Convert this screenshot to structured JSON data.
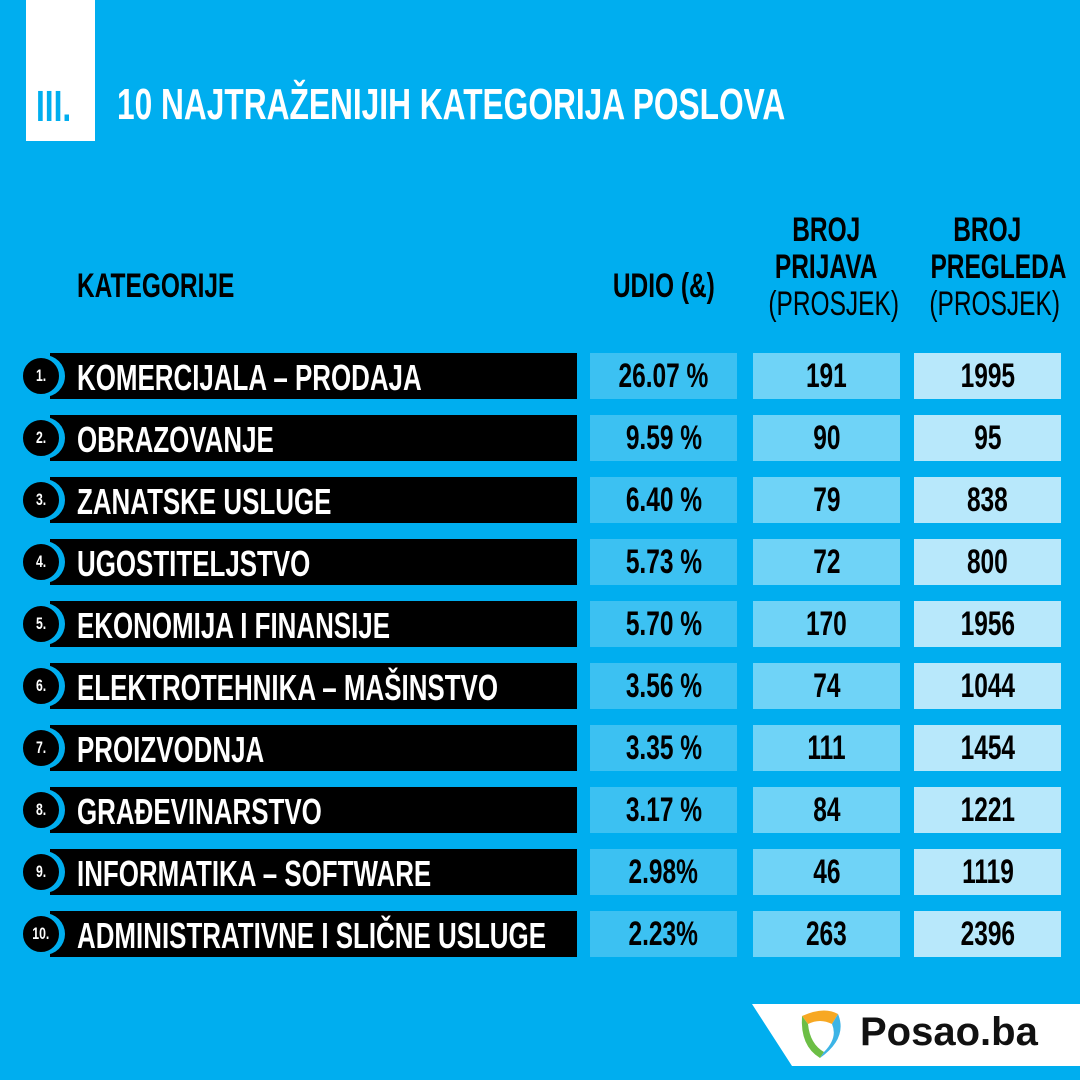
{
  "header": {
    "section_number": "III.",
    "title": "10 NAJTRAŽENIJIH KATEGORIJA POSLOVA"
  },
  "chart_data": {
    "type": "table",
    "title": "10 NAJTRAŽENIJIH KATEGORIJA POSLOVA",
    "columns": {
      "category": "KATEGORIJE",
      "share": "UDIO (&)",
      "applications_1": "BROJ",
      "applications_2": "PRIJAVA",
      "applications_sub": "(PROSJEK)",
      "views_1": "BROJ",
      "views_2": "PREGLEDA",
      "views_sub": "(PROSJEK)"
    },
    "rows": [
      {
        "rank": "1.",
        "category": "KOMERCIJALA – PRODAJA",
        "share": "26.07 %",
        "applications": "191",
        "views": "1995"
      },
      {
        "rank": "2.",
        "category": "OBRAZOVANJE",
        "share": "9.59 %",
        "applications": "90",
        "views": "95"
      },
      {
        "rank": "3.",
        "category": "ZANATSKE USLUGE",
        "share": "6.40 %",
        "applications": "79",
        "views": "838"
      },
      {
        "rank": "4.",
        "category": "UGOSTITELJSTVO",
        "share": "5.73 %",
        "applications": "72",
        "views": "800"
      },
      {
        "rank": "5.",
        "category": "EKONOMIJA I FINANSIJE",
        "share": "5.70 %",
        "applications": "170",
        "views": "1956"
      },
      {
        "rank": "6.",
        "category": "ELEKTROTEHNIKA – MAŠINSTVO",
        "share": "3.56 %",
        "applications": "74",
        "views": "1044"
      },
      {
        "rank": "7.",
        "category": "PROIZVODNJA",
        "share": "3.35 %",
        "applications": "111",
        "views": "1454"
      },
      {
        "rank": "8.",
        "category": "GRAĐEVINARSTVO",
        "share": "3.17 %",
        "applications": "84",
        "views": "1221"
      },
      {
        "rank": "9.",
        "category": "INFORMATIKA – SOFTWARE",
        "share": "2.98%",
        "applications": "46",
        "views": "1119"
      },
      {
        "rank": "10.",
        "category": "ADMINISTRATIVNE I SLIČNE USLUGE",
        "share": "2.23%",
        "applications": "263",
        "views": "2396"
      }
    ]
  },
  "footer": {
    "logo_text": "Posao.ba"
  },
  "colors": {
    "background": "#00aeef",
    "share_cell": "#3cc1f2",
    "applications_cell": "#6fd3f7",
    "views_cell": "#b8e8fb"
  }
}
